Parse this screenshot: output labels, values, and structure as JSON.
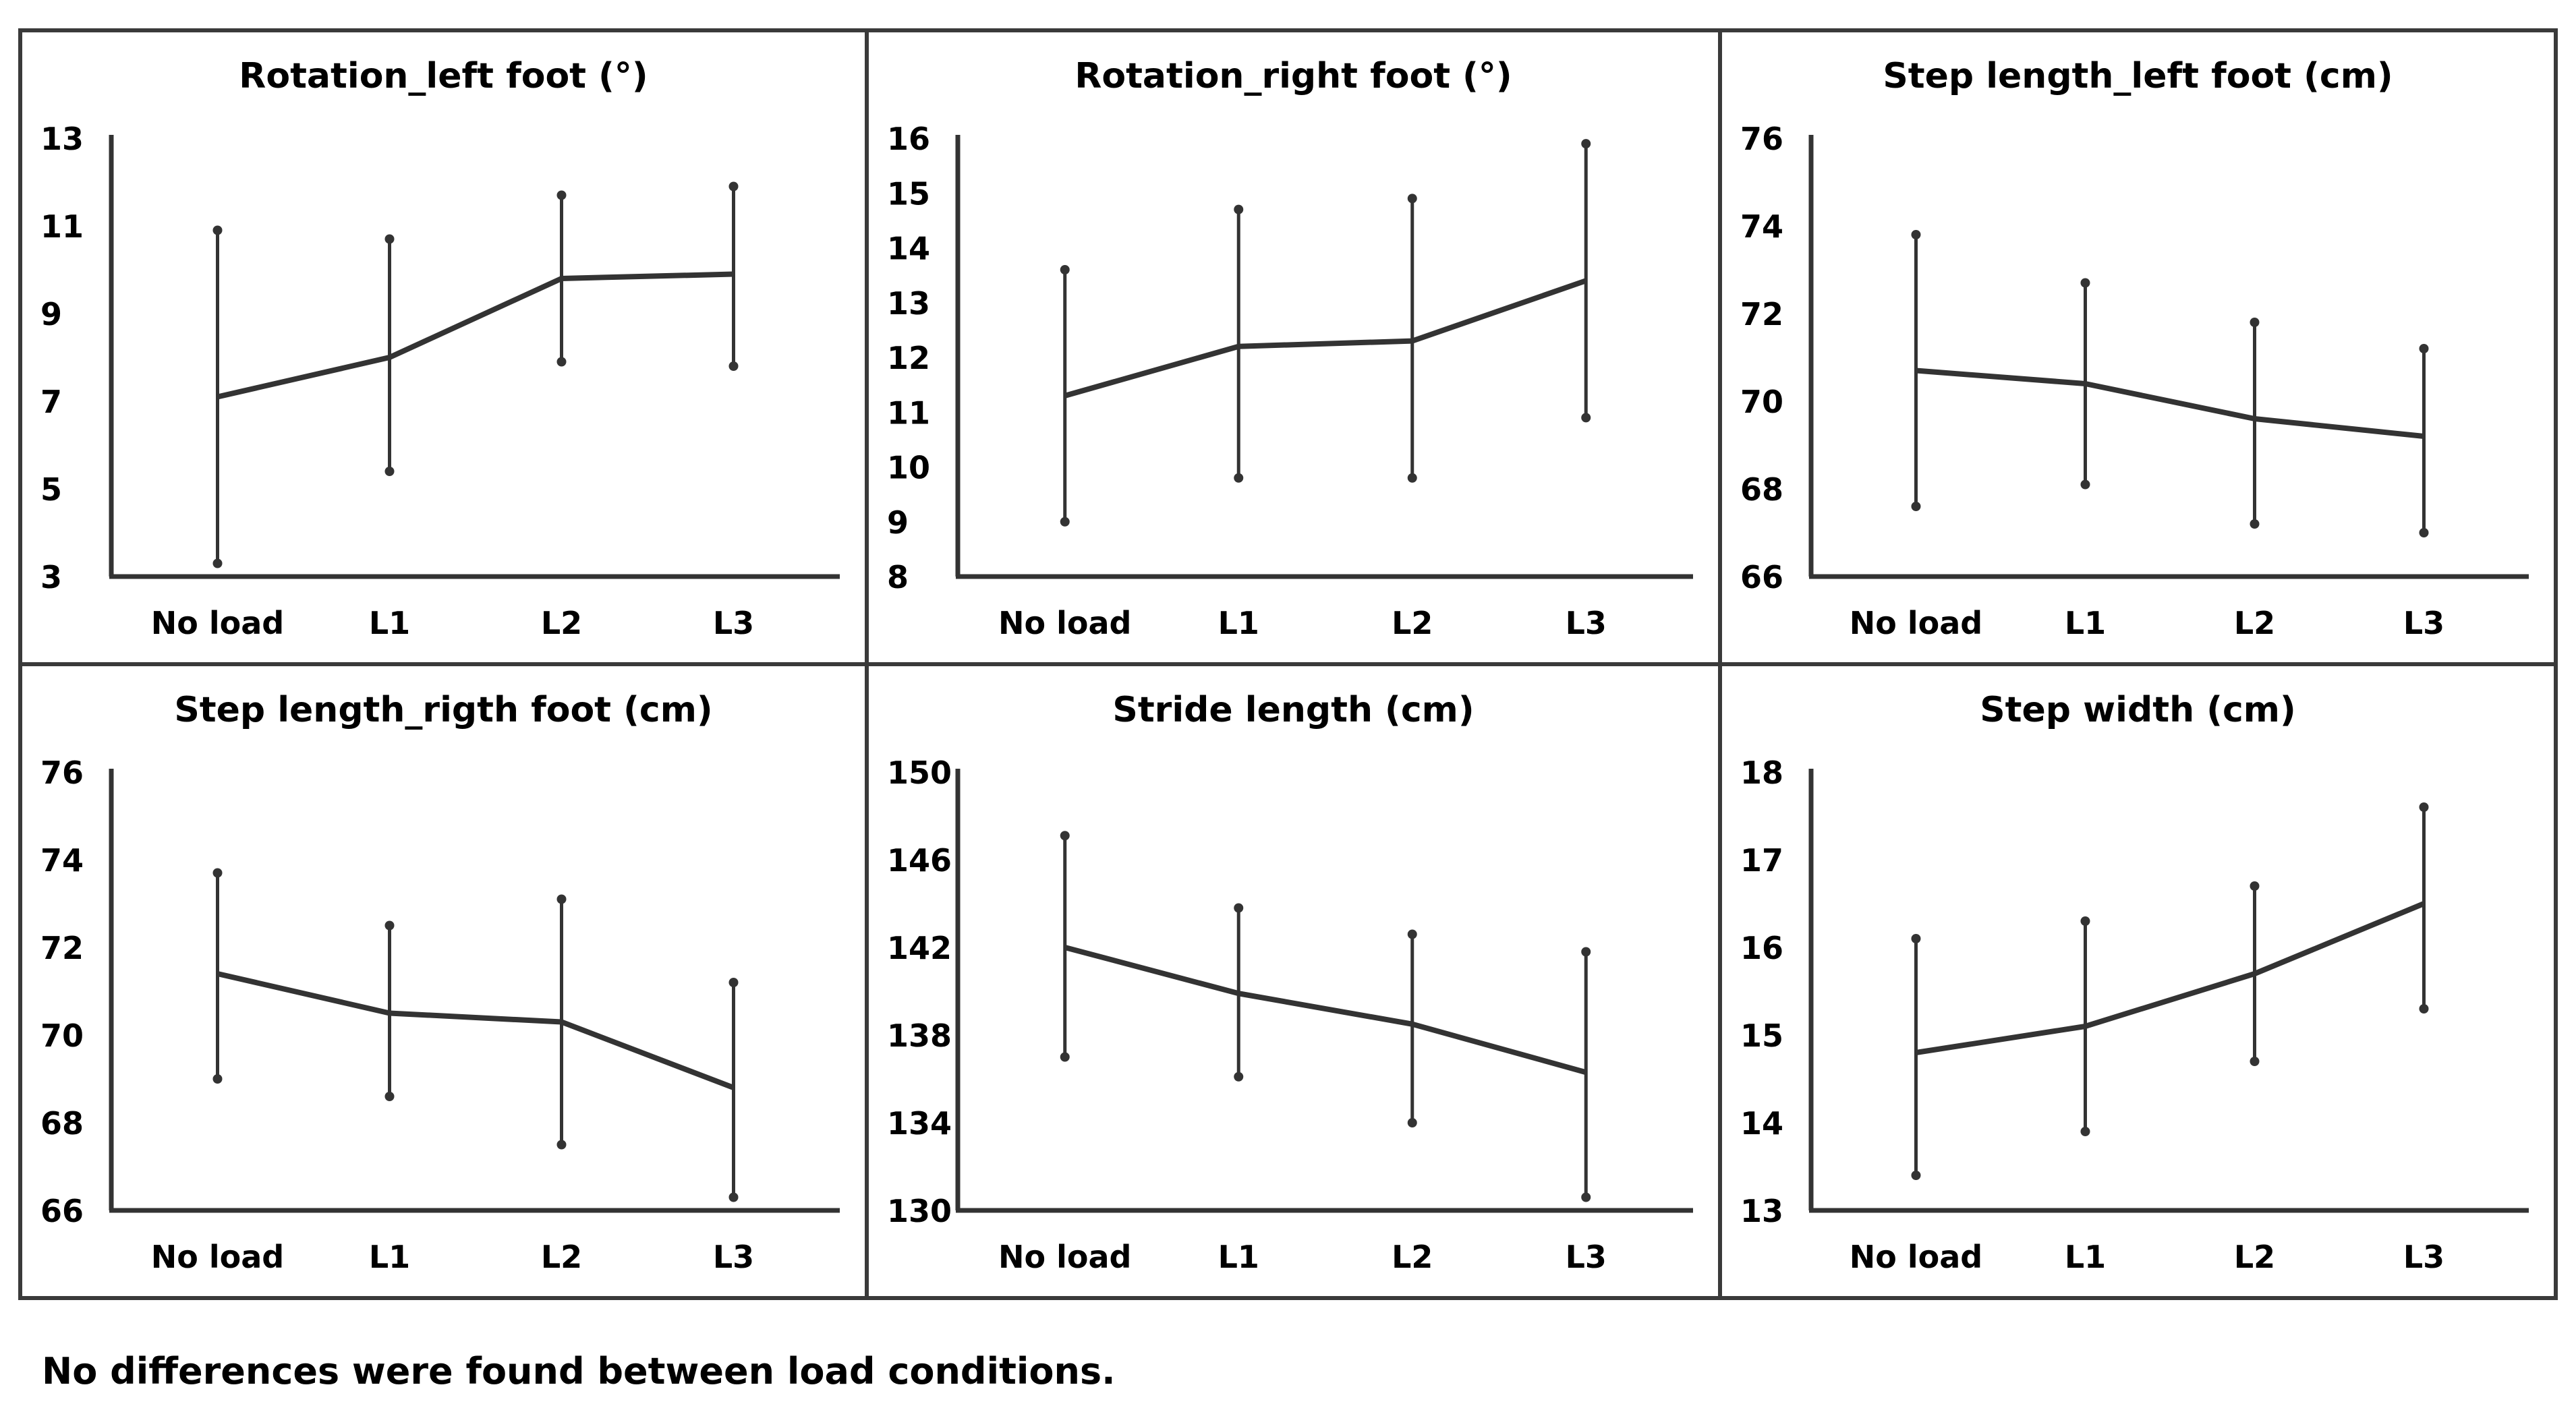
{
  "colors": {
    "line": "#333333",
    "frame": "#3a3a3a",
    "text": "#000000",
    "background": "#ffffff"
  },
  "note": "No differences were found between load conditions.",
  "chart_data": [
    {
      "type": "line",
      "title": "Rotation_left foot (°)",
      "categories": [
        "No load",
        "L1",
        "L2",
        "L3"
      ],
      "yticks": [
        "13",
        "11",
        "9",
        "7",
        "5",
        "3"
      ],
      "ylim": [
        3,
        13
      ],
      "values": [
        7.1,
        8.0,
        9.8,
        9.9
      ],
      "error_low": [
        3.3,
        5.4,
        7.9,
        7.8
      ],
      "error_high": [
        10.9,
        10.7,
        11.7,
        11.9
      ]
    },
    {
      "type": "line",
      "title": "Rotation_right foot (°)",
      "categories": [
        "No load",
        "L1",
        "L2",
        "L3"
      ],
      "yticks": [
        "16",
        "15",
        "14",
        "13",
        "12",
        "11",
        "10",
        "9",
        "8"
      ],
      "ylim": [
        8,
        16
      ],
      "values": [
        11.3,
        12.2,
        12.3,
        13.4
      ],
      "error_low": [
        9.0,
        9.8,
        9.8,
        10.9
      ],
      "error_high": [
        13.6,
        14.7,
        14.9,
        15.9
      ]
    },
    {
      "type": "line",
      "title": "Step length_left foot (cm)",
      "categories": [
        "No load",
        "L1",
        "L2",
        "L3"
      ],
      "yticks": [
        "76",
        "74",
        "72",
        "70",
        "68",
        "66"
      ],
      "ylim": [
        66,
        76
      ],
      "values": [
        70.7,
        70.4,
        69.6,
        69.2
      ],
      "error_low": [
        67.6,
        68.1,
        67.2,
        67.0
      ],
      "error_high": [
        73.8,
        72.7,
        71.8,
        71.2
      ]
    },
    {
      "type": "line",
      "title": "Step length_rigth foot (cm)",
      "categories": [
        "No load",
        "L1",
        "L2",
        "L3"
      ],
      "yticks": [
        "76",
        "74",
        "72",
        "70",
        "68",
        "66"
      ],
      "ylim": [
        66,
        76
      ],
      "values": [
        71.4,
        70.5,
        70.3,
        68.8
      ],
      "error_low": [
        69.0,
        68.6,
        67.5,
        66.3
      ],
      "error_high": [
        73.7,
        72.5,
        73.1,
        71.2
      ]
    },
    {
      "type": "line",
      "title": "Stride length (cm)",
      "categories": [
        "No load",
        "L1",
        "L2",
        "L3"
      ],
      "yticks": [
        "150",
        "146",
        "142",
        "138",
        "134",
        "130"
      ],
      "ylim": [
        130,
        150
      ],
      "values": [
        142.0,
        139.9,
        138.5,
        136.3
      ],
      "error_low": [
        137.0,
        136.1,
        134.0,
        130.6
      ],
      "error_high": [
        147.1,
        143.8,
        142.6,
        141.8
      ]
    },
    {
      "type": "line",
      "title": "Step width (cm)",
      "categories": [
        "No load",
        "L1",
        "L2",
        "L3"
      ],
      "yticks": [
        "18",
        "17",
        "16",
        "15",
        "14",
        "13"
      ],
      "ylim": [
        13,
        18
      ],
      "values": [
        14.8,
        15.1,
        15.7,
        16.5
      ],
      "error_low": [
        13.4,
        13.9,
        14.7,
        15.3
      ],
      "error_high": [
        16.1,
        16.3,
        16.7,
        17.6
      ]
    }
  ]
}
